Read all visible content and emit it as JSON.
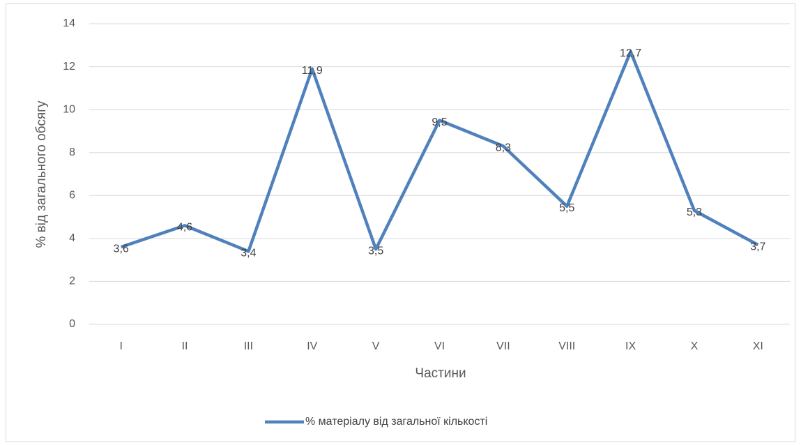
{
  "chart_data": {
    "type": "line",
    "x_label": "Частини",
    "y_label": "% від загального обсягу",
    "categories": [
      "I",
      "II",
      "III",
      "IV",
      "V",
      "VI",
      "VII",
      "VIII",
      "IX",
      "X",
      "XI"
    ],
    "series": [
      {
        "name": "% матеріалу від загальної кількості",
        "color": "#4f81bd",
        "values": [
          3.6,
          4.6,
          3.4,
          11.9,
          3.5,
          9.5,
          8.3,
          5.5,
          12.7,
          5.3,
          3.7
        ],
        "value_labels": [
          "3,6",
          "4,6",
          "3,4",
          "11,9",
          "3,5",
          "9,5",
          "8,3",
          "5,5",
          "12,7",
          "5,3",
          "3,7"
        ]
      }
    ],
    "ylim": [
      0,
      14
    ],
    "yticks": [
      0,
      2,
      4,
      6,
      8,
      10,
      12,
      14
    ],
    "grid": true,
    "legend": "bottom"
  }
}
